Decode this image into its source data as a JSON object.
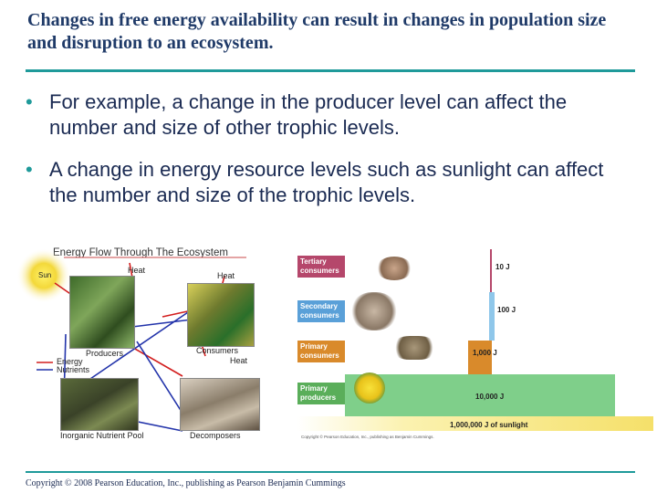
{
  "slide": {
    "title": "Changes in free energy availability can result in changes in population size and disruption to an ecosystem.",
    "bullets": [
      "For example, a change in the producer level can affect the number and size of other trophic levels.",
      "A change in energy resource levels such as sunlight can affect the number and size of the trophic levels."
    ],
    "footer": "Copyright © 2008 Pearson Education, Inc., publishing as Pearson Benjamin Cummings"
  },
  "flow_diagram": {
    "title": "Energy Flow Through The Ecosystem",
    "sun": "Sun",
    "heat_1": "Heat",
    "heat_2": "Heat",
    "heat_3": "Heat",
    "producers": "Producers",
    "consumers": "Consumers",
    "decomposers": "Decomposers",
    "pool": "Inorganic Nutrient Pool",
    "legend_energy": "Energy",
    "legend_nutrients": "Nutrients",
    "colors": {
      "energy": "#d21e1e",
      "nutrients": "#2233aa"
    }
  },
  "pyramid": {
    "levels": [
      {
        "name": "Tertiary consumers",
        "energy": "10 J",
        "color": "#b5476b"
      },
      {
        "name": "Secondary consumers",
        "energy": "100 J",
        "color": "#5aa0d8"
      },
      {
        "name": "Primary consumers",
        "energy": "1,000 J",
        "color": "#d98a2b"
      },
      {
        "name": "Primary producers",
        "energy": "10,000 J",
        "color": "#5aae5a"
      }
    ],
    "sunlight": "1,000,000 J of sunlight",
    "credit": "Copyright © Pearson Education, Inc., publishing as Benjamin Cummings."
  }
}
